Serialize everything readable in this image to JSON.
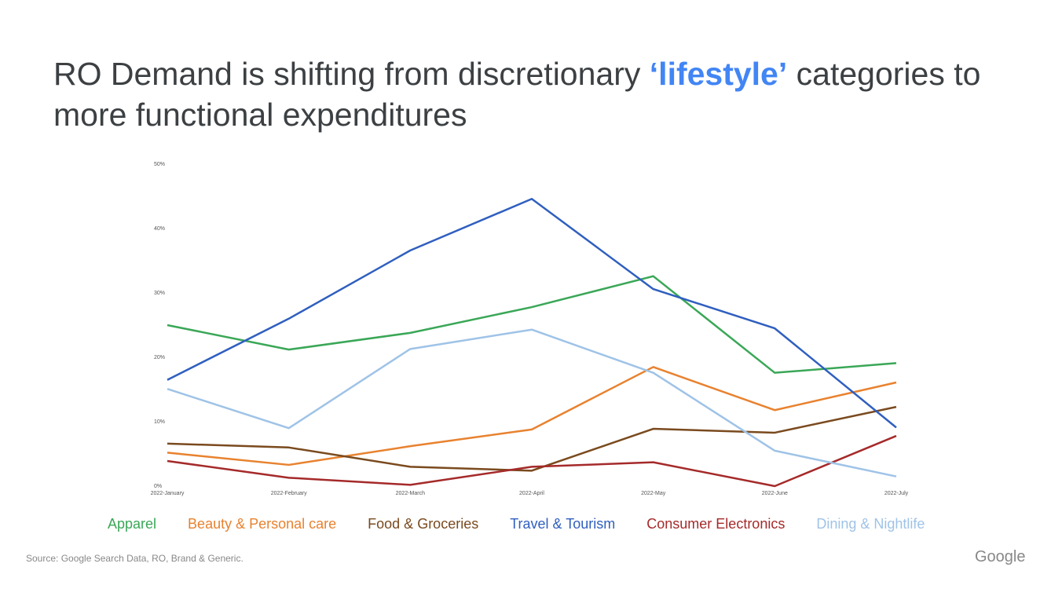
{
  "title": [
    "RO Demand is shifting from discretionary",
    "‘lifestyle’",
    "categories to more functional expenditures"
  ],
  "chart_data": {
    "type": "line",
    "categories": [
      "2022-January",
      "2022-February",
      "2022-March",
      "2022-April",
      "2022-May",
      "2022-June",
      "2022-July"
    ],
    "series": [
      {
        "name": "Apparel",
        "color": "#3aa757",
        "values": [
          25.0,
          21.2,
          23.8,
          27.8,
          32.6,
          17.6,
          19.1
        ]
      },
      {
        "name": "Beauty & Personal care",
        "color": "#e8822f",
        "values": [
          5.2,
          3.3,
          6.2,
          8.8,
          18.5,
          11.8,
          16.1
        ]
      },
      {
        "name": "Food & Groceries",
        "color": "#7a4a1e",
        "values": [
          6.6,
          6.0,
          3.0,
          2.4,
          8.9,
          8.3,
          12.3
        ]
      },
      {
        "name": "Travel & Tourism",
        "color": "#2f5fbf",
        "values": [
          16.5,
          26.0,
          36.6,
          44.6,
          30.6,
          24.5,
          9.1
        ]
      },
      {
        "name": "Consumer Electronics",
        "color": "#a52a2a",
        "values": [
          3.9,
          1.3,
          0.2,
          3.0,
          3.7,
          0,
          7.8
        ]
      },
      {
        "name": "Dining & Nightlife",
        "color": "#9fc3e7",
        "values": [
          15.1,
          9.0,
          21.3,
          24.3,
          17.6,
          5.5,
          1.5
        ]
      }
    ],
    "ylim": [
      0,
      50
    ],
    "yticks": [
      {
        "value": 0,
        "label": "0%"
      },
      {
        "value": 10,
        "label": "10%"
      },
      {
        "value": 20,
        "label": "20%"
      },
      {
        "value": 30,
        "label": "30%"
      },
      {
        "value": 40,
        "label": "40%"
      },
      {
        "value": 50,
        "label": "50%"
      }
    ],
    "grid": false
  },
  "footer": {
    "source": "Source: Google Search Data, RO, Brand & Generic.",
    "logo": "Google"
  }
}
